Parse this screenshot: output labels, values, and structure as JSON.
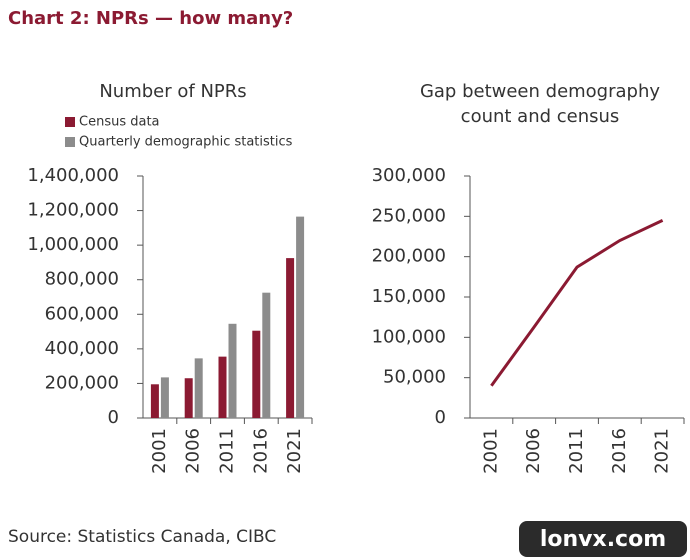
{
  "title": "Chart 2: NPRs — how many?",
  "source": "Source: Statistics Canada, CIBC",
  "watermark": "lonvx.com",
  "chart_data": [
    {
      "type": "bar",
      "title": [
        "Number of NPRs"
      ],
      "categories": [
        "2001",
        "2006",
        "2011",
        "2016",
        "2021"
      ],
      "series": [
        {
          "name": "Census data",
          "color": "#8b1a32",
          "values": [
            195000,
            230000,
            355000,
            505000,
            925000
          ]
        },
        {
          "name": "Quarterly demographic statistics",
          "color": "#8c8c8c",
          "values": [
            235000,
            345000,
            545000,
            725000,
            1165000
          ]
        }
      ],
      "ylim": [
        0,
        1400000
      ],
      "yticks": [
        0,
        {
          "value": 200000,
          "label": "200,000"
        },
        {
          "value": 400000,
          "label": "400,000"
        },
        {
          "value": 600000,
          "label": "600,000"
        },
        {
          "value": 800000,
          "label": "800,000"
        },
        {
          "value": 1000000,
          "label": "1,000,000"
        },
        {
          "value": 1200000,
          "label": "1,200,000"
        },
        {
          "value": 1400000,
          "label": "1,400,000"
        }
      ],
      "legend": "top-left"
    },
    {
      "type": "line",
      "title": [
        "Gap between demography",
        "count and census"
      ],
      "categories": [
        "2001",
        "2006",
        "2011",
        "2016",
        "2021"
      ],
      "values": [
        40000,
        113000,
        187000,
        220000,
        245000
      ],
      "color": "#8b1a32",
      "ylim": [
        0,
        300000
      ],
      "yticks": [
        0,
        {
          "value": 50000,
          "label": "50,000"
        },
        {
          "value": 100000,
          "label": "100,000"
        },
        {
          "value": 150000,
          "label": "150,000"
        },
        {
          "value": 200000,
          "label": "200,000"
        },
        {
          "value": 250000,
          "label": "250,000"
        },
        {
          "value": 300000,
          "label": "300,000"
        }
      ]
    }
  ]
}
